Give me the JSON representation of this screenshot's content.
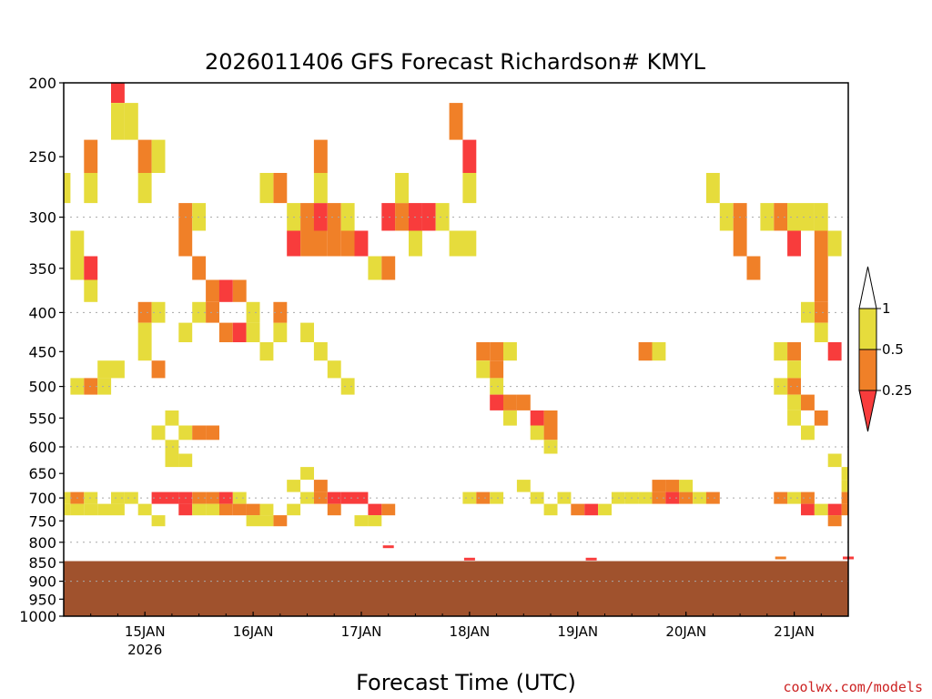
{
  "chart_data": {
    "type": "heatmap",
    "title": "2026011406 GFS Forecast Richardson# KMYL",
    "xlabel": "Forecast Time (UTC)",
    "ylabel": "",
    "credit": "coolwx.com/models",
    "x_range_hours": [
      0,
      174
    ],
    "x_start": "2026-01-14 06Z",
    "x_ticks": [
      {
        "label": "15JAN",
        "hour": 18,
        "sublabel": "2026"
      },
      {
        "label": "16JAN",
        "hour": 42,
        "sublabel": ""
      },
      {
        "label": "17JAN",
        "hour": 66,
        "sublabel": ""
      },
      {
        "label": "18JAN",
        "hour": 90,
        "sublabel": ""
      },
      {
        "label": "19JAN",
        "hour": 114,
        "sublabel": ""
      },
      {
        "label": "20JAN",
        "hour": 138,
        "sublabel": ""
      },
      {
        "label": "21JAN",
        "hour": 162,
        "sublabel": ""
      }
    ],
    "y_scale": "pressure",
    "y_range_hpa": [
      200,
      1000
    ],
    "y_ticks": [
      200,
      250,
      300,
      350,
      400,
      450,
      500,
      550,
      600,
      650,
      700,
      750,
      800,
      850,
      900,
      950,
      1000
    ],
    "y_gridlines": [
      300,
      400,
      500,
      600,
      700,
      800,
      900,
      1000
    ],
    "ground_pressure_hpa": 847,
    "ground_color": "#a0522d",
    "legend": {
      "placement": "right",
      "levels": [
        {
          "label": "1",
          "color": "#ffffff"
        },
        {
          "label": "0.5",
          "color": "#e6dc3c"
        },
        {
          "label": "0.25",
          "color": "#f08028"
        },
        {
          "label": "",
          "color": "#f83c3c"
        }
      ]
    },
    "colors": {
      "ri_05_1": "#e6dc3c",
      "ri_025_05": "#f08028",
      "ri_lt_025": "#f83c3c"
    },
    "cell_hours": 3,
    "cell_hpa": 25,
    "cells": [
      [
        0,
        275,
        1
      ],
      [
        0,
        700,
        1
      ],
      [
        0,
        725,
        1
      ],
      [
        3,
        700,
        2
      ],
      [
        3,
        725,
        1
      ],
      [
        6,
        700,
        1
      ],
      [
        6,
        725,
        1
      ],
      [
        9,
        725,
        1
      ],
      [
        12,
        700,
        1
      ],
      [
        12,
        725,
        1
      ],
      [
        15,
        700,
        1
      ],
      [
        3,
        350,
        1
      ],
      [
        3,
        325,
        1
      ],
      [
        6,
        350,
        3
      ],
      [
        6,
        375,
        1
      ],
      [
        3,
        500,
        1
      ],
      [
        6,
        500,
        2
      ],
      [
        9,
        475,
        1
      ],
      [
        9,
        500,
        1
      ],
      [
        12,
        475,
        1
      ],
      [
        6,
        250,
        2
      ],
      [
        6,
        275,
        1
      ],
      [
        12,
        200,
        3
      ],
      [
        12,
        225,
        1
      ],
      [
        15,
        225,
        1
      ],
      [
        18,
        250,
        2
      ],
      [
        18,
        275,
        1
      ],
      [
        21,
        250,
        1
      ],
      [
        18,
        400,
        2
      ],
      [
        18,
        425,
        1
      ],
      [
        21,
        400,
        1
      ],
      [
        18,
        450,
        1
      ],
      [
        21,
        475,
        2
      ],
      [
        21,
        700,
        3
      ],
      [
        24,
        700,
        3
      ],
      [
        27,
        700,
        3
      ],
      [
        27,
        725,
        3
      ],
      [
        30,
        700,
        2
      ],
      [
        33,
        700,
        2
      ],
      [
        36,
        700,
        3
      ],
      [
        36,
        725,
        2
      ],
      [
        39,
        700,
        1
      ],
      [
        39,
        725,
        2
      ],
      [
        42,
        725,
        2
      ],
      [
        45,
        725,
        1
      ],
      [
        48,
        750,
        2
      ],
      [
        51,
        725,
        1
      ],
      [
        24,
        625,
        1
      ],
      [
        24,
        600,
        1
      ],
      [
        27,
        625,
        1
      ],
      [
        27,
        575,
        1
      ],
      [
        30,
        575,
        2
      ],
      [
        33,
        575,
        2
      ],
      [
        24,
        550,
        1
      ],
      [
        21,
        575,
        1
      ],
      [
        27,
        300,
        2
      ],
      [
        27,
        325,
        2
      ],
      [
        30,
        300,
        1
      ],
      [
        30,
        350,
        2
      ],
      [
        33,
        375,
        2
      ],
      [
        36,
        375,
        3
      ],
      [
        39,
        375,
        2
      ],
      [
        42,
        400,
        1
      ],
      [
        36,
        425,
        2
      ],
      [
        39,
        425,
        3
      ],
      [
        42,
        425,
        1
      ],
      [
        45,
        450,
        1
      ],
      [
        48,
        425,
        1
      ],
      [
        48,
        400,
        2
      ],
      [
        30,
        400,
        1
      ],
      [
        33,
        400,
        2
      ],
      [
        27,
        425,
        1
      ],
      [
        48,
        275,
        2
      ],
      [
        45,
        275,
        1
      ],
      [
        51,
        300,
        1
      ],
      [
        51,
        325,
        3
      ],
      [
        54,
        300,
        2
      ],
      [
        54,
        325,
        2
      ],
      [
        57,
        300,
        3
      ],
      [
        57,
        325,
        2
      ],
      [
        60,
        300,
        2
      ],
      [
        60,
        325,
        2
      ],
      [
        63,
        300,
        1
      ],
      [
        63,
        325,
        2
      ],
      [
        66,
        325,
        3
      ],
      [
        72,
        300,
        3
      ],
      [
        75,
        300,
        2
      ],
      [
        78,
        325,
        1
      ],
      [
        54,
        425,
        1
      ],
      [
        57,
        450,
        1
      ],
      [
        60,
        475,
        1
      ],
      [
        63,
        500,
        1
      ],
      [
        57,
        250,
        2
      ],
      [
        57,
        275,
        1
      ],
      [
        54,
        650,
        1
      ],
      [
        57,
        675,
        2
      ],
      [
        60,
        700,
        3
      ],
      [
        63,
        700,
        3
      ],
      [
        66,
        700,
        3
      ],
      [
        69,
        725,
        3
      ],
      [
        72,
        725,
        2
      ],
      [
        60,
        725,
        2
      ],
      [
        57,
        700,
        2
      ],
      [
        51,
        675,
        1
      ],
      [
        54,
        700,
        1
      ],
      [
        75,
        275,
        1
      ],
      [
        69,
        350,
        1
      ],
      [
        72,
        350,
        2
      ],
      [
        78,
        300,
        3
      ],
      [
        81,
        300,
        3
      ],
      [
        84,
        300,
        1
      ],
      [
        87,
        325,
        1
      ],
      [
        90,
        325,
        1
      ],
      [
        87,
        225,
        2
      ],
      [
        90,
        250,
        3
      ],
      [
        90,
        275,
        1
      ],
      [
        93,
        450,
        2
      ],
      [
        93,
        475,
        1
      ],
      [
        96,
        450,
        2
      ],
      [
        96,
        475,
        2
      ],
      [
        99,
        450,
        1
      ],
      [
        96,
        500,
        1
      ],
      [
        96,
        525,
        3
      ],
      [
        99,
        525,
        2
      ],
      [
        99,
        550,
        1
      ],
      [
        102,
        525,
        2
      ],
      [
        105,
        550,
        3
      ],
      [
        105,
        575,
        1
      ],
      [
        108,
        550,
        2
      ],
      [
        108,
        575,
        2
      ],
      [
        108,
        600,
        1
      ],
      [
        90,
        700,
        1
      ],
      [
        93,
        700,
        2
      ],
      [
        96,
        700,
        1
      ],
      [
        102,
        675,
        1
      ],
      [
        105,
        700,
        1
      ],
      [
        108,
        725,
        1
      ],
      [
        111,
        700,
        1
      ],
      [
        114,
        725,
        2
      ],
      [
        117,
        725,
        3
      ],
      [
        120,
        725,
        1
      ],
      [
        123,
        700,
        1
      ],
      [
        126,
        700,
        1
      ],
      [
        129,
        700,
        1
      ],
      [
        132,
        675,
        2
      ],
      [
        135,
        675,
        2
      ],
      [
        132,
        700,
        2
      ],
      [
        135,
        700,
        3
      ],
      [
        138,
        700,
        2
      ],
      [
        138,
        675,
        1
      ],
      [
        141,
        700,
        1
      ],
      [
        144,
        700,
        2
      ],
      [
        129,
        450,
        2
      ],
      [
        132,
        450,
        1
      ],
      [
        144,
        275,
        1
      ],
      [
        147,
        300,
        1
      ],
      [
        150,
        300,
        2
      ],
      [
        150,
        325,
        2
      ],
      [
        153,
        350,
        2
      ],
      [
        156,
        300,
        1
      ],
      [
        159,
        300,
        2
      ],
      [
        162,
        300,
        1
      ],
      [
        162,
        325,
        3
      ],
      [
        165,
        300,
        1
      ],
      [
        168,
        300,
        1
      ],
      [
        168,
        325,
        2
      ],
      [
        171,
        325,
        1
      ],
      [
        168,
        350,
        2
      ],
      [
        168,
        375,
        2
      ],
      [
        168,
        400,
        2
      ],
      [
        165,
        400,
        1
      ],
      [
        168,
        425,
        1
      ],
      [
        171,
        450,
        3
      ],
      [
        159,
        450,
        1
      ],
      [
        162,
        450,
        2
      ],
      [
        162,
        475,
        1
      ],
      [
        162,
        500,
        2
      ],
      [
        162,
        525,
        1
      ],
      [
        165,
        525,
        2
      ],
      [
        162,
        550,
        1
      ],
      [
        165,
        575,
        1
      ],
      [
        168,
        550,
        2
      ],
      [
        159,
        500,
        1
      ],
      [
        159,
        700,
        2
      ],
      [
        162,
        700,
        1
      ],
      [
        165,
        700,
        2
      ],
      [
        165,
        725,
        3
      ],
      [
        168,
        725,
        1
      ],
      [
        174,
        725,
        2
      ],
      [
        171,
        725,
        3
      ],
      [
        171,
        750,
        2
      ],
      [
        171,
        625,
        1
      ],
      [
        174,
        675,
        1
      ],
      [
        174,
        700,
        2
      ],
      [
        174,
        650,
        1
      ],
      [
        18,
        725,
        1
      ],
      [
        21,
        750,
        1
      ],
      [
        30,
        725,
        1
      ],
      [
        33,
        725,
        1
      ],
      [
        42,
        750,
        1
      ],
      [
        45,
        750,
        1
      ],
      [
        66,
        750,
        1
      ],
      [
        69,
        750,
        1
      ]
    ],
    "surface_marks": [
      {
        "hour": 72,
        "hpa": 812,
        "color": "#f83c3c"
      },
      {
        "hour": 117,
        "hpa": 843,
        "color": "#f83c3c"
      },
      {
        "hour": 90,
        "hpa": 843,
        "color": "#f83c3c"
      },
      {
        "hour": 159,
        "hpa": 840,
        "color": "#f08028"
      },
      {
        "hour": 174,
        "hpa": 840,
        "color": "#f83c3c"
      }
    ]
  }
}
